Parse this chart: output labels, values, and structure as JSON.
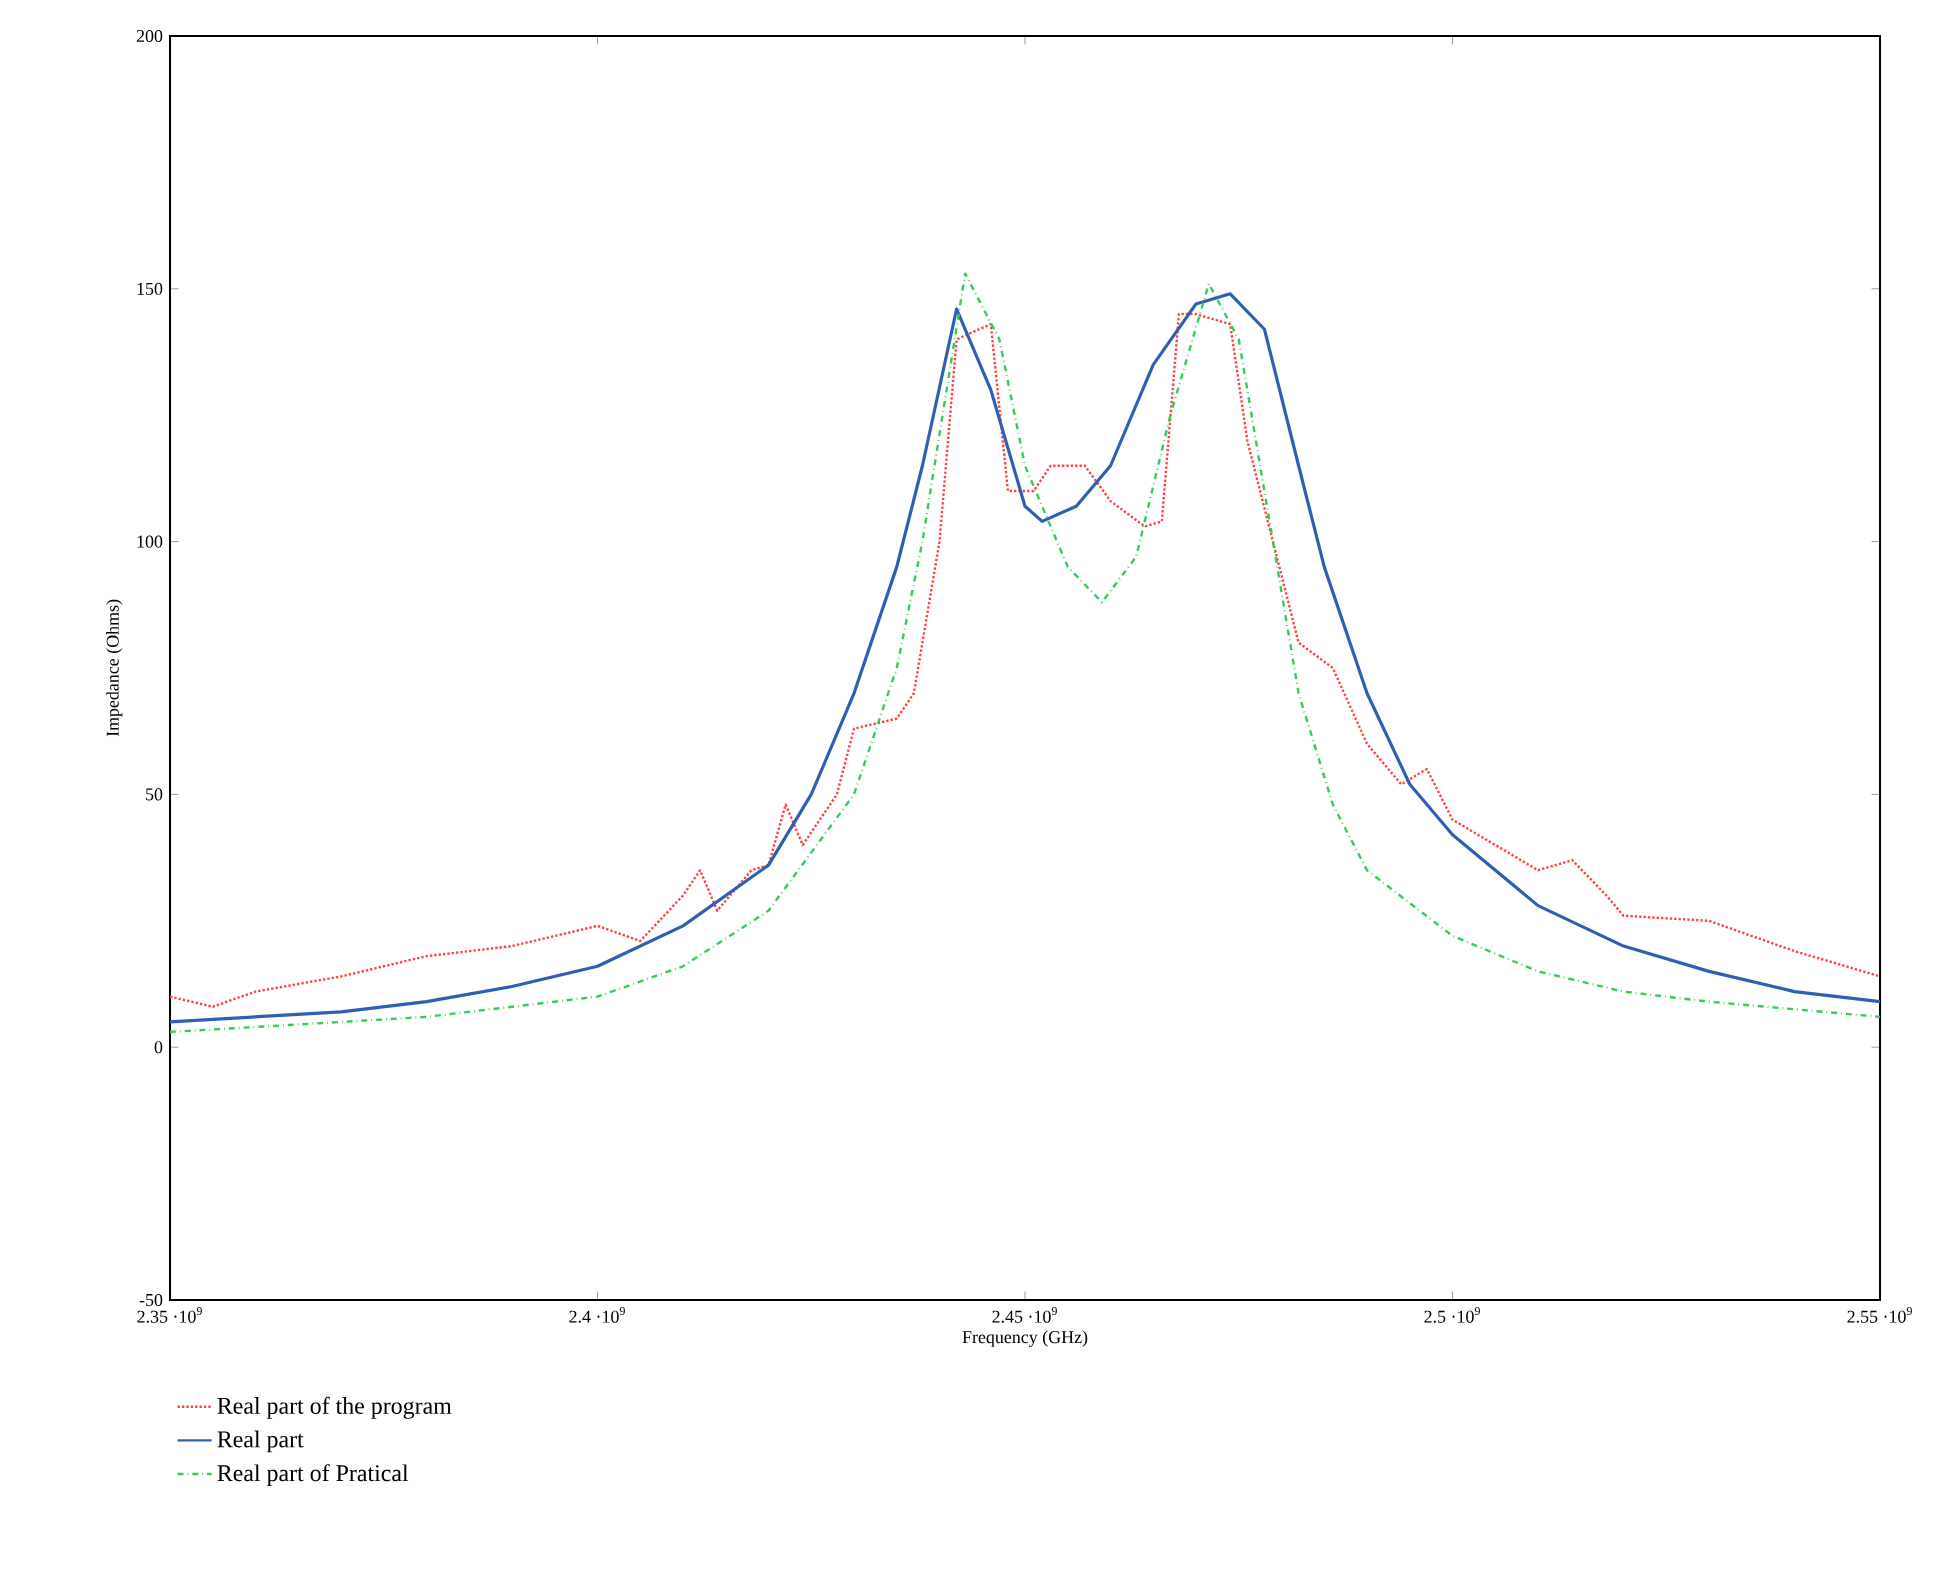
{
  "chart_data": {
    "type": "line",
    "xlabel": "Frequency (GHz)",
    "ylabel": "Impedance (Ohms)",
    "xlim": [
      2350000000,
      2550000000
    ],
    "ylim": [
      -50,
      200
    ],
    "xticks": [
      {
        "value": 2350000000,
        "label": "2.35 ·10$^{9}$"
      },
      {
        "value": 2400000000,
        "label": "2.4 ·10$^{9}$"
      },
      {
        "value": 2450000000,
        "label": "2.45 ·10$^{9}$"
      },
      {
        "value": 2500000000,
        "label": "2.5 ·10$^{9}$"
      },
      {
        "value": 2550000000,
        "label": "2.55 ·10$^{9}$"
      }
    ],
    "yticks": [
      -50,
      0,
      50,
      100,
      150,
      200
    ],
    "grid": false,
    "legend": "bottom left",
    "series": [
      {
        "name": "Real part of the program",
        "color": "#ff4444",
        "line_style": "dotted",
        "x": [
          2350000000,
          2355000000,
          2360000000,
          2370000000,
          2380000000,
          2385000000,
          2390000000,
          2400000000,
          2405000000,
          2410000000,
          2412000000,
          2414000000,
          2418000000,
          2420000000,
          2422000000,
          2424000000,
          2428000000,
          2430000000,
          2435000000,
          2437000000,
          2440000000,
          2442000000,
          2446000000,
          2448000000,
          2451000000,
          2453000000,
          2457000000,
          2460000000,
          2464000000,
          2466000000,
          2468000000,
          2470000000,
          2474000000,
          2476000000,
          2479000000,
          2482000000,
          2486000000,
          2490000000,
          2494000000,
          2497000000,
          2500000000,
          2510000000,
          2514000000,
          2518000000,
          2520000000,
          2530000000,
          2540000000,
          2550000000
        ],
        "values": [
          10,
          8,
          11,
          14,
          18,
          19,
          20,
          24,
          21,
          30,
          35,
          27,
          35,
          36,
          48,
          40,
          50,
          63,
          65,
          70,
          100,
          140,
          143,
          110,
          110,
          115,
          115,
          108,
          103,
          104,
          145,
          145,
          143,
          120,
          100,
          80,
          75,
          60,
          52,
          55,
          45,
          35,
          37,
          30,
          26,
          25,
          19,
          14
        ]
      },
      {
        "name": "Real part",
        "color": "#2f5fb5",
        "line_style": "solid",
        "x": [
          2350000000,
          2370000000,
          2380000000,
          2390000000,
          2400000000,
          2410000000,
          2420000000,
          2425000000,
          2430000000,
          2435000000,
          2438000000,
          2442000000,
          2446000000,
          2450000000,
          2452000000,
          2456000000,
          2460000000,
          2465000000,
          2470000000,
          2474000000,
          2478000000,
          2482000000,
          2485000000,
          2490000000,
          2495000000,
          2500000000,
          2510000000,
          2520000000,
          2530000000,
          2540000000,
          2550000000
        ],
        "values": [
          5,
          7,
          9,
          12,
          16,
          24,
          36,
          50,
          70,
          95,
          115,
          146,
          130,
          107,
          104,
          107,
          115,
          135,
          147,
          149,
          142,
          115,
          95,
          70,
          52,
          42,
          28,
          20,
          15,
          11,
          9
        ]
      },
      {
        "name": "Real part of Pratical",
        "color": "#33cc55",
        "line_style": "dashdot",
        "x": [
          2350000000,
          2380000000,
          2400000000,
          2410000000,
          2420000000,
          2430000000,
          2435000000,
          2438000000,
          2443000000,
          2447000000,
          2450000000,
          2455000000,
          2459000000,
          2463000000,
          2467000000,
          2471500000,
          2475000000,
          2478000000,
          2482000000,
          2486000000,
          2490000000,
          2500000000,
          2510000000,
          2520000000,
          2530000000,
          2550000000
        ],
        "values": [
          3,
          6,
          10,
          16,
          27,
          50,
          75,
          100,
          153,
          140,
          115,
          95,
          88,
          97,
          125,
          151,
          140,
          110,
          70,
          48,
          35,
          22,
          15,
          11,
          9,
          6
        ]
      }
    ]
  }
}
